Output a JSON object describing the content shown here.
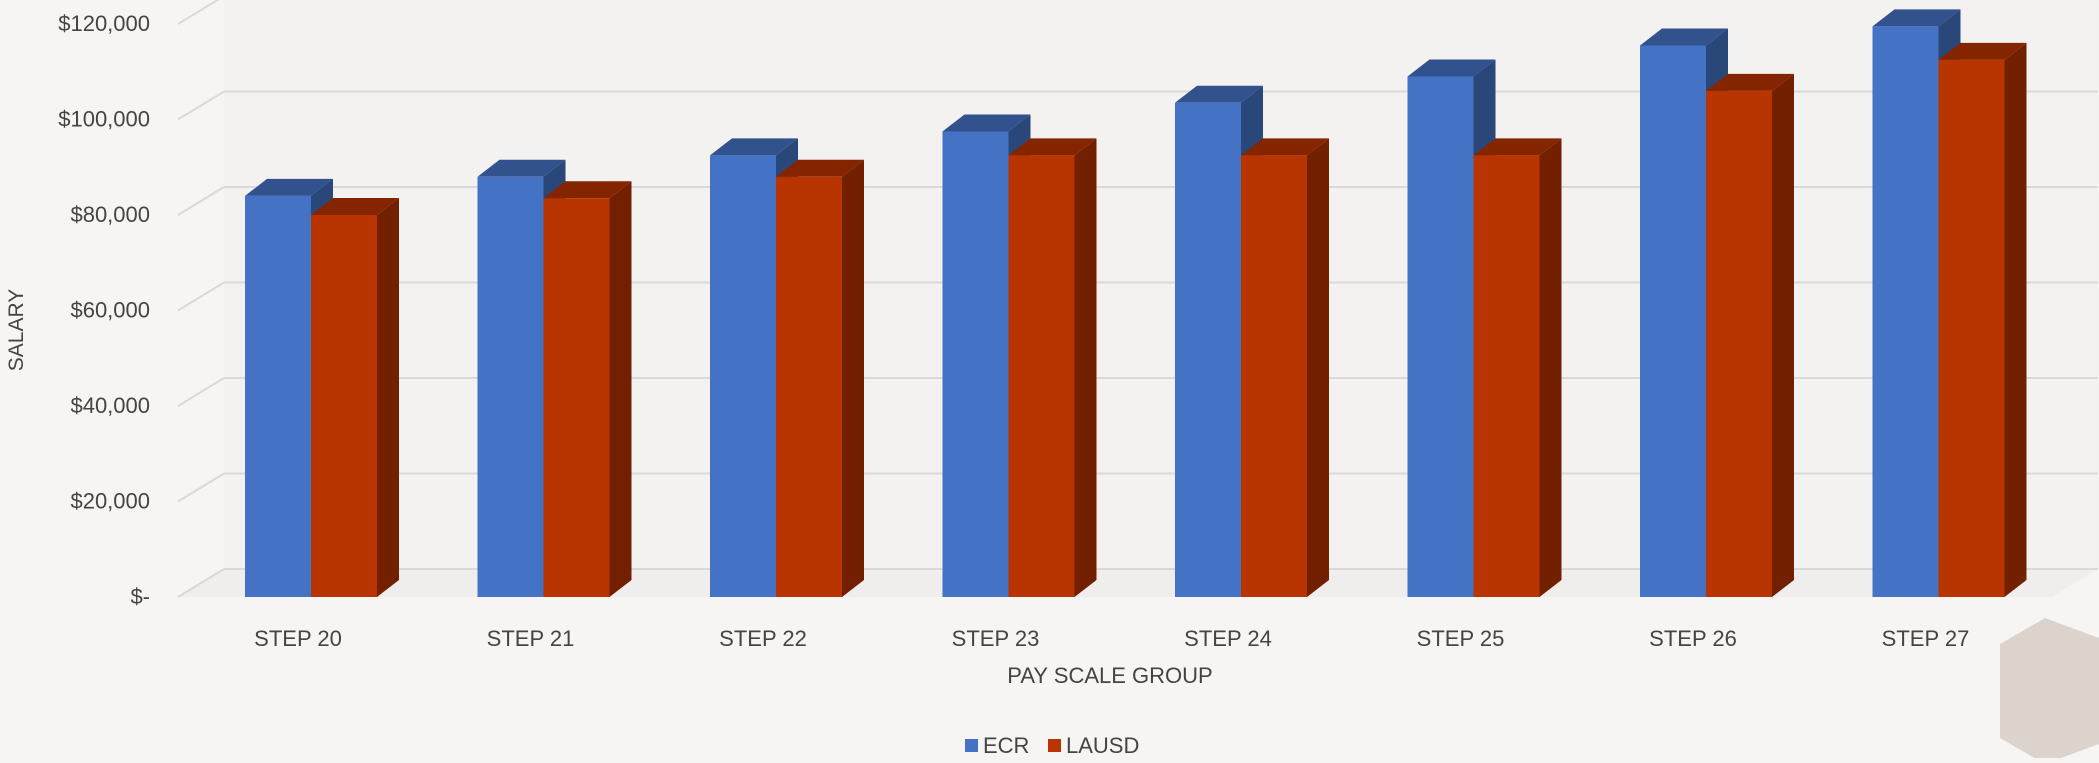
{
  "chart_data": {
    "type": "bar",
    "style": "3d-clustered-column",
    "title": "",
    "xlabel": "PAY SCALE GROUP",
    "ylabel": "SALARY",
    "categories": [
      "STEP 20",
      "STEP 21",
      "STEP 22",
      "STEP 23",
      "STEP 24",
      "STEP 25",
      "STEP 26",
      "STEP 27"
    ],
    "series": [
      {
        "name": "ECR",
        "color": "#4472c4",
        "values": [
          84000,
          88000,
          92500,
          97500,
          103500,
          109000,
          115500,
          119500
        ]
      },
      {
        "name": "LAUSD",
        "color": "#b83400",
        "values": [
          80000,
          83500,
          88000,
          92500,
          92500,
          92500,
          106000,
          112500
        ]
      }
    ],
    "ylim": [
      0,
      120000
    ],
    "y_ticks": [
      0,
      20000,
      40000,
      60000,
      80000,
      100000,
      120000
    ],
    "y_tick_labels": [
      "$-",
      "$20,000",
      "$40,000",
      "$60,000",
      "$80,000",
      "$100,000",
      "$120,000"
    ],
    "grid": true,
    "legend": {
      "position": "bottom",
      "entries": [
        "ECR",
        "LAUSD"
      ]
    }
  }
}
